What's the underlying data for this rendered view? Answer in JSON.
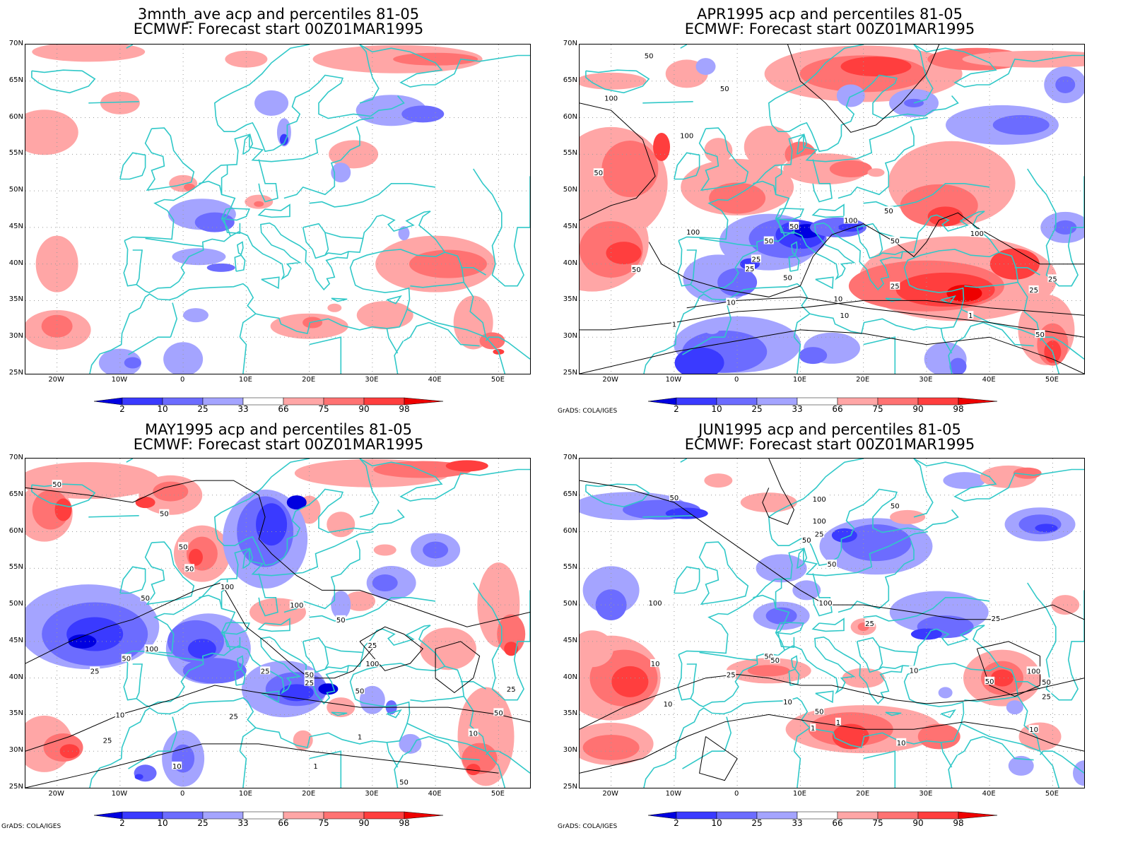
{
  "panels": [
    {
      "title_line1": "3mnth_ave acp and percentiles 81-05",
      "title_line2": "ECMWF: Forecast start 00Z01MAR1995",
      "contour_labels": []
    },
    {
      "title_line1": "APR1995 acp and percentiles 81-05",
      "title_line2": "ECMWF: Forecast start 00Z01MAR1995",
      "contour_labels": [
        "50",
        "50",
        "100",
        "100",
        "50",
        "100",
        "50",
        "25",
        "100",
        "50",
        "100",
        "50",
        "50",
        "50",
        "25",
        "50",
        "25",
        "25",
        "10",
        "25",
        "10",
        "10",
        "1",
        "1",
        "50"
      ]
    },
    {
      "title_line1": "MAY1995 acp and percentiles 81-05",
      "title_line2": "ECMWF: Forecast start 00Z01MAR1995",
      "contour_labels": [
        "50",
        "50",
        "50",
        "50",
        "50",
        "100",
        "100",
        "50",
        "50",
        "100",
        "25",
        "25",
        "25",
        "100",
        "50",
        "25",
        "25",
        "50",
        "10",
        "50",
        "25",
        "10",
        "25",
        "1",
        "10",
        "1",
        "50"
      ]
    },
    {
      "title_line1": "JUN1995 acp and percentiles 81-05",
      "title_line2": "ECMWF: Forecast start 00Z01MAR1995",
      "contour_labels": [
        "50",
        "100",
        "50",
        "100",
        "50",
        "25",
        "50",
        "100",
        "100",
        "25",
        "25",
        "50",
        "10",
        "25",
        "50",
        "10",
        "50",
        "100",
        "50",
        "25",
        "10",
        "10",
        "1",
        "1",
        "10",
        "50",
        "10"
      ]
    }
  ],
  "lat_labels": [
    "70N",
    "65N",
    "60N",
    "55N",
    "50N",
    "45N",
    "40N",
    "35N",
    "30N",
    "25N"
  ],
  "lon_labels": [
    "20W",
    "10W",
    "0",
    "10E",
    "20E",
    "30E",
    "40E",
    "50E"
  ],
  "colorbar_ticks": [
    "2",
    "10",
    "25",
    "33",
    "66",
    "75",
    "90",
    "98"
  ],
  "colorbar_colors": [
    "#0000e0",
    "#3a3aff",
    "#6c6cff",
    "#a4a4ff",
    "#ffffff",
    "#ffa6a6",
    "#ff7272",
    "#ff3e3e",
    "#ee0000"
  ],
  "credit": "GrADS: COLA/IGES",
  "colors": {
    "coast": "#30c8c8",
    "contour": "#000000",
    "grid": "#9a9a9a"
  }
}
